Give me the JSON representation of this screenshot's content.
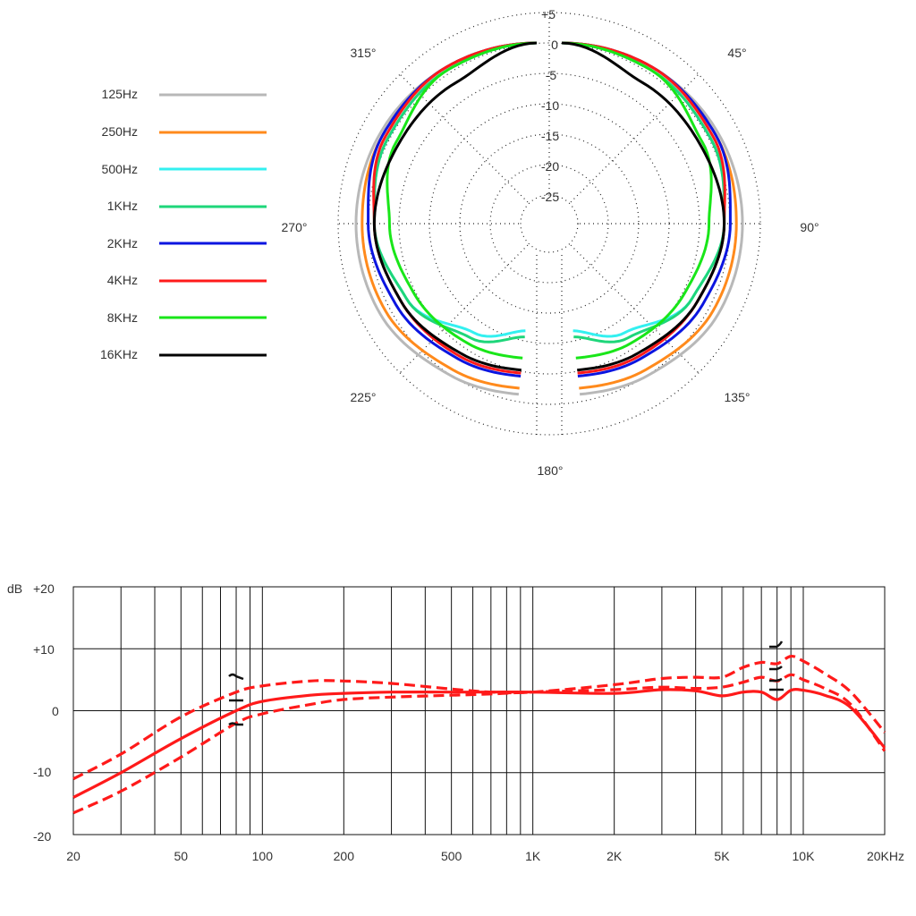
{
  "polar_chart": {
    "ring_labels": [
      "+5",
      "0",
      "-5",
      "-10",
      "-15",
      "-20",
      "-25"
    ],
    "angle_labels": [
      "45°",
      "90°",
      "135°",
      "180°",
      "225°",
      "270°",
      "315°"
    ],
    "legend": [
      {
        "label": "125Hz",
        "color": "#b8b8b8"
      },
      {
        "label": "250Hz",
        "color": "#ff8a1c"
      },
      {
        "label": "500Hz",
        "color": "#33f0f0"
      },
      {
        "label": "1KHz",
        "color": "#1ed67a"
      },
      {
        "label": "2KHz",
        "color": "#0b15e0"
      },
      {
        "label": "4KHz",
        "color": "#ff1a1a"
      },
      {
        "label": "8KHz",
        "color": "#19e619"
      },
      {
        "label": "16KHz",
        "color": "#000000"
      }
    ]
  },
  "response_chart": {
    "y_unit": "dB",
    "y_tick_labels": [
      "+20",
      "+10",
      "0",
      "-10",
      "-20"
    ],
    "x_tick_labels": [
      "20",
      "50",
      "100",
      "200",
      "500",
      "1K",
      "2K",
      "5K",
      "10K",
      "20KHz"
    ],
    "curve_color": "#ff1a1a"
  },
  "chart_data": [
    {
      "type": "line",
      "polar": true,
      "angle_unit": "degrees",
      "radial_unit": "dB",
      "rlim": [
        -30,
        5
      ],
      "theta_ticks": [
        45,
        90,
        135,
        180,
        225,
        270,
        315
      ],
      "r_ticks": [
        5,
        0,
        -5,
        -10,
        -15,
        -20,
        -25
      ],
      "legend_position": "left",
      "grid": true,
      "series": [
        {
          "name": "125Hz",
          "color": "#b8b8b8",
          "theta": [
            0,
            30,
            60,
            90,
            120,
            150,
            175
          ],
          "r": [
            0,
            0,
            0,
            0,
            0,
            -1,
            -1.5
          ]
        },
        {
          "name": "250Hz",
          "color": "#ff8a1c",
          "theta": [
            0,
            30,
            60,
            90,
            120,
            150,
            175
          ],
          "r": [
            0,
            0,
            -0.5,
            -1,
            -1,
            -2,
            -2.5
          ]
        },
        {
          "name": "500Hz",
          "color": "#33f0f0",
          "theta": [
            0,
            30,
            60,
            90,
            120,
            150,
            175
          ],
          "r": [
            0,
            -0.5,
            -1.5,
            -3,
            -5,
            -9,
            -12
          ]
        },
        {
          "name": "1KHz",
          "color": "#1ed67a",
          "theta": [
            0,
            30,
            60,
            90,
            120,
            150,
            175
          ],
          "r": [
            0,
            -0.5,
            -1.5,
            -3,
            -5,
            -8,
            -11
          ]
        },
        {
          "name": "2KHz",
          "color": "#0b15e0",
          "theta": [
            0,
            30,
            60,
            90,
            120,
            150,
            175
          ],
          "r": [
            0,
            0,
            -0.5,
            -2,
            -3,
            -4,
            -4.5
          ]
        },
        {
          "name": "4KHz",
          "color": "#ff1a1a",
          "theta": [
            0,
            30,
            60,
            90,
            120,
            150,
            175
          ],
          "r": [
            0,
            0,
            -1,
            -3,
            -4,
            -4.5,
            -5
          ]
        },
        {
          "name": "8KHz",
          "color": "#19e619",
          "theta": [
            0,
            30,
            60,
            90,
            120,
            150,
            175
          ],
          "r": [
            0,
            -0.5,
            -3,
            -5.5,
            -6.5,
            -7,
            -7.5
          ]
        },
        {
          "name": "16KHz",
          "color": "#000000",
          "theta": [
            0,
            30,
            60,
            90,
            120,
            150,
            175
          ],
          "r": [
            0,
            -3,
            -3.5,
            -3,
            -4,
            -5,
            -5.5
          ]
        }
      ]
    },
    {
      "type": "line",
      "xscale": "log",
      "xlim": [
        20,
        20000
      ],
      "ylim": [
        -20,
        20
      ],
      "ylabel": "dB",
      "x_ticks": [
        20,
        50,
        100,
        200,
        500,
        1000,
        2000,
        5000,
        10000,
        20000
      ],
      "y_ticks": [
        20,
        10,
        0,
        -10,
        -20
      ],
      "grid": true,
      "series": [
        {
          "line": "solid",
          "x": [
            20,
            30,
            50,
            80,
            100,
            150,
            200,
            300,
            500,
            700,
            1000,
            2000,
            3000,
            4000,
            5000,
            6000,
            7000,
            8000,
            9000,
            10000,
            12000,
            15000,
            20000
          ],
          "y": [
            -14,
            -10,
            -4.5,
            0,
            1.5,
            2.5,
            2.8,
            3,
            3,
            3,
            3,
            2.8,
            3.4,
            3.2,
            2.4,
            3,
            3,
            1.8,
            3.3,
            3.3,
            2.5,
            0.5,
            -6
          ]
        },
        {
          "line": "dashed",
          "x": [
            20,
            30,
            50,
            80,
            100,
            150,
            200,
            300,
            500,
            700,
            1000,
            2000,
            3000,
            4000,
            5000,
            6000,
            7000,
            8000,
            9000,
            10000,
            12000,
            15000,
            20000
          ],
          "y": [
            -11,
            -7,
            -1,
            3,
            4,
            4.8,
            4.8,
            4.4,
            3.5,
            3,
            3,
            4.2,
            5.2,
            5.4,
            5.4,
            7,
            7.8,
            7.6,
            8.8,
            8,
            6,
            3,
            -3.5
          ]
        },
        {
          "line": "dashed",
          "x": [
            20,
            30,
            50,
            80,
            100,
            150,
            200,
            300,
            500,
            700,
            1000,
            2000,
            3000,
            4000,
            5000,
            6000,
            7000,
            8000,
            9000,
            10000,
            12000,
            15000,
            20000
          ],
          "y": [
            -16.5,
            -13,
            -7.5,
            -2,
            -0.5,
            1,
            1.8,
            2.2,
            2.5,
            2.7,
            3,
            3.4,
            3.8,
            3.6,
            3.8,
            4.6,
            5.4,
            4.8,
            5.8,
            5,
            3.6,
            1,
            -6.5
          ]
        }
      ]
    }
  ]
}
